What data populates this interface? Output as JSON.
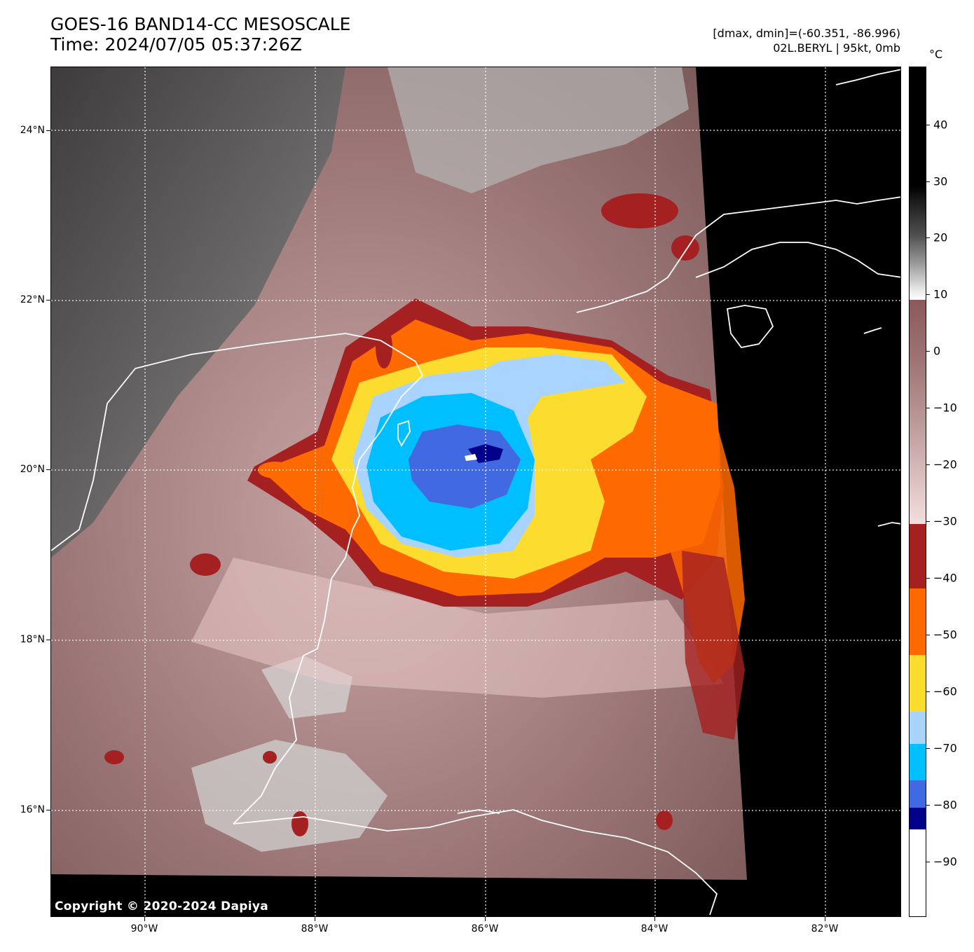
{
  "header": {
    "title_line1": "GOES-16 BAND14-CC MESOSCALE",
    "title_line2": "Time: 2024/07/05 05:37:26Z",
    "range_text": "[dmax, dmin]=(-60.351, -86.996)",
    "storm_text": "02L.BERYL | 95kt, 0mb"
  },
  "map": {
    "copyright": "Copyright © 2020-2024 Dapiya",
    "lat_labels": [
      "24°N",
      "22°N",
      "20°N",
      "18°N",
      "16°N"
    ],
    "lon_labels": [
      "90°W",
      "88°W",
      "86°W",
      "84°W",
      "82°W"
    ]
  },
  "colorbar": {
    "unit": "°C",
    "tick_labels": [
      "40",
      "30",
      "20",
      "10",
      "0",
      "−10",
      "−20",
      "−30",
      "−40",
      "−50",
      "−60",
      "−70",
      "−80",
      "−90"
    ],
    "colors": {
      "warm_gray": "#1a1a1a",
      "light_gray": "#e0e0e0",
      "brown": "#8a5a5a",
      "pink": "#f2d8d8",
      "dark_red": "#a52020",
      "orange": "#ff6a00",
      "yellow": "#fcdc2e",
      "light_blue": "#a8d4ff",
      "cyan": "#00bfff",
      "royal_blue": "#4169e1",
      "navy": "#00008b",
      "white": "#ffffff"
    }
  }
}
